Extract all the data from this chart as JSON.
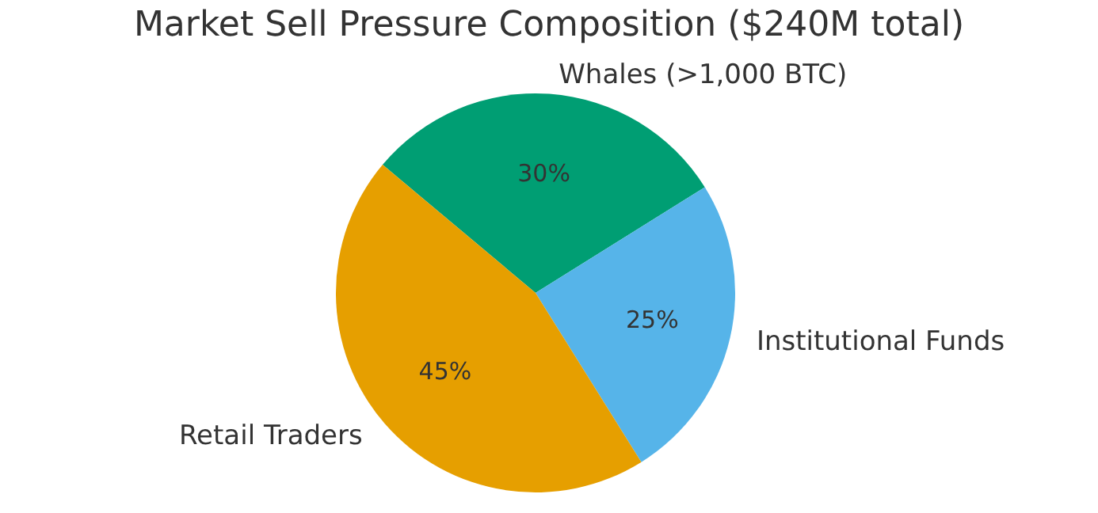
{
  "chart_data": {
    "type": "pie",
    "title": "Market Sell Pressure Composition ($240M total)",
    "categories": [
      "Whales (>1,000 BTC)",
      "Institutional Funds",
      "Retail Traders"
    ],
    "values": [
      30,
      25,
      45
    ],
    "colors": [
      "#009e73",
      "#56b4e9",
      "#e69f00"
    ],
    "value_labels": [
      "30%",
      "25%",
      "45%"
    ]
  }
}
